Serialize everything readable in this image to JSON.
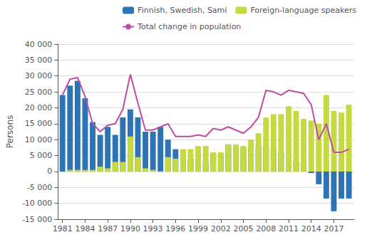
{
  "chart_data": {
    "type": "bar",
    "stacked": true,
    "x": [
      1981,
      1982,
      1983,
      1984,
      1985,
      1986,
      1987,
      1988,
      1989,
      1990,
      1991,
      1992,
      1993,
      1994,
      1995,
      1996,
      1997,
      1998,
      1999,
      2000,
      2001,
      2002,
      2003,
      2004,
      2005,
      2006,
      2007,
      2008,
      2009,
      2010,
      2011,
      2012,
      2013,
      2014,
      2015,
      2016,
      2017,
      2018,
      2019
    ],
    "xlim": [
      1980.4,
      2019.7
    ],
    "xticks": [
      1981,
      1984,
      1987,
      1990,
      1993,
      1996,
      1999,
      2002,
      2005,
      2008,
      2011,
      2014,
      2017
    ],
    "ylabel": "Persons",
    "ylim": [
      -15000,
      40000
    ],
    "yticks": [
      {
        "value": -15000,
        "label": "-15 000"
      },
      {
        "value": -10000,
        "label": "-10 000"
      },
      {
        "value": -5000,
        "label": "-5 000"
      },
      0,
      {
        "value": 5000,
        "label": "5 000"
      },
      {
        "value": 10000,
        "label": "10 000"
      },
      {
        "value": 15000,
        "label": "15 000"
      },
      {
        "value": 20000,
        "label": "20 000"
      },
      {
        "value": 25000,
        "label": "25 000"
      },
      {
        "value": 30000,
        "label": "30 000"
      },
      {
        "value": 35000,
        "label": "35 000"
      },
      {
        "value": 40000,
        "label": "40 000"
      }
    ],
    "grid": true,
    "legend": "upper right",
    "series": [
      {
        "name": "Finnish, Swedish, Sami",
        "type": "bar",
        "color": "#2E74B5",
        "values": [
          24000,
          27000,
          28500,
          23000,
          15500,
          11500,
          14000,
          11500,
          17000,
          19500,
          17000,
          12500,
          12500,
          14000,
          10000,
          7000,
          4000,
          4000,
          3500,
          3000,
          5500,
          5000,
          8500,
          7500,
          7500,
          7500,
          8000,
          8000,
          7500,
          6000,
          5500,
          3000,
          2500,
          -500,
          -4000,
          -8500,
          -12500,
          -8500,
          -8500
        ]
      },
      {
        "name": "Foreign-language speakers",
        "type": "bar",
        "color": "#C5D941",
        "values": [
          0,
          500,
          500,
          500,
          500,
          1500,
          1000,
          3000,
          3000,
          11000,
          4500,
          1000,
          500,
          0,
          4500,
          4000,
          7000,
          7000,
          8000,
          8000,
          6000,
          6000,
          8500,
          8500,
          8000,
          10000,
          12000,
          17000,
          18000,
          18000,
          20500,
          19000,
          16500,
          16000,
          15000,
          24000,
          19000,
          18500,
          21000
        ]
      },
      {
        "name": "Total change in population",
        "type": "line",
        "color": "#BE4CA0",
        "values": [
          24000,
          29000,
          29500,
          23500,
          15000,
          12500,
          14500,
          15000,
          19500,
          30500,
          21500,
          13000,
          13000,
          14000,
          15000,
          11000,
          11000,
          11000,
          11500,
          11000,
          13500,
          13000,
          14000,
          13000,
          12000,
          14000,
          17000,
          25500,
          25000,
          24000,
          25500,
          25000,
          24500,
          21000,
          10000,
          15000,
          6000,
          6000,
          7000
        ]
      }
    ]
  }
}
